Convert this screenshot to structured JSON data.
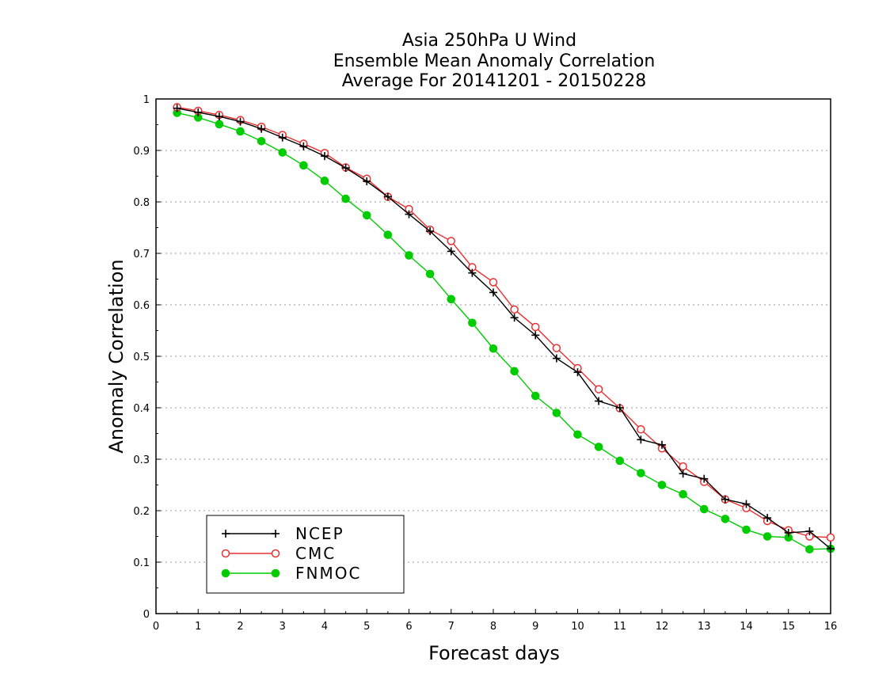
{
  "chart_data": {
    "type": "line",
    "title": [
      "Asia 250hPa U Wind",
      "Ensemble Mean Anomaly Correlation",
      "Average For 20141201 - 20150228"
    ],
    "xlabel": "Forecast days",
    "ylabel": "Anomaly Correlation",
    "xlim": [
      0,
      16
    ],
    "ylim": [
      0,
      1
    ],
    "x_ticks": [
      "0",
      "1",
      "2",
      "3",
      "4",
      "5",
      "6",
      "7",
      "8",
      "9",
      "10",
      "11",
      "12",
      "13",
      "14",
      "15",
      "16"
    ],
    "y_ticks": [
      "0",
      "0.1",
      "0.2",
      "0.3",
      "0.4",
      "0.5",
      "0.6",
      "0.7",
      "0.8",
      "0.9",
      "1"
    ],
    "grid": "horizontal dotted",
    "legend_position": "bottom-left",
    "x": [
      0.5,
      1,
      1.5,
      2,
      2.5,
      3,
      3.5,
      4,
      4.5,
      5,
      5.5,
      6,
      6.5,
      7,
      7.5,
      8,
      8.5,
      9,
      9.5,
      10,
      10.5,
      11,
      11.5,
      12,
      12.5,
      13,
      13.5,
      14,
      14.5,
      15,
      15.5,
      16
    ],
    "series": [
      {
        "name": "NCEP",
        "color": "#000000",
        "marker": "plus",
        "values": [
          0.982,
          0.974,
          0.966,
          0.956,
          0.942,
          0.925,
          0.908,
          0.889,
          0.866,
          0.84,
          0.81,
          0.776,
          0.743,
          0.704,
          0.662,
          0.624,
          0.575,
          0.541,
          0.496,
          0.469,
          0.413,
          0.4,
          0.338,
          0.328,
          0.272,
          0.262,
          0.222,
          0.213,
          0.186,
          0.157,
          0.16,
          0.126
        ]
      },
      {
        "name": "CMC",
        "color": "#e83030",
        "marker": "open-circle",
        "values": [
          0.984,
          0.977,
          0.969,
          0.959,
          0.946,
          0.93,
          0.913,
          0.895,
          0.867,
          0.845,
          0.81,
          0.786,
          0.746,
          0.724,
          0.673,
          0.644,
          0.591,
          0.557,
          0.516,
          0.477,
          0.436,
          0.399,
          0.358,
          0.321,
          0.286,
          0.256,
          0.222,
          0.205,
          0.18,
          0.162,
          0.15,
          0.148
        ]
      },
      {
        "name": "FNMOC",
        "color": "#00cc00",
        "marker": "filled-circle",
        "values": [
          0.973,
          0.964,
          0.951,
          0.937,
          0.918,
          0.896,
          0.871,
          0.841,
          0.806,
          0.774,
          0.736,
          0.696,
          0.66,
          0.611,
          0.565,
          0.515,
          0.471,
          0.423,
          0.39,
          0.348,
          0.324,
          0.297,
          0.273,
          0.25,
          0.232,
          0.203,
          0.184,
          0.163,
          0.15,
          0.148,
          0.125,
          0.126
        ]
      }
    ]
  }
}
